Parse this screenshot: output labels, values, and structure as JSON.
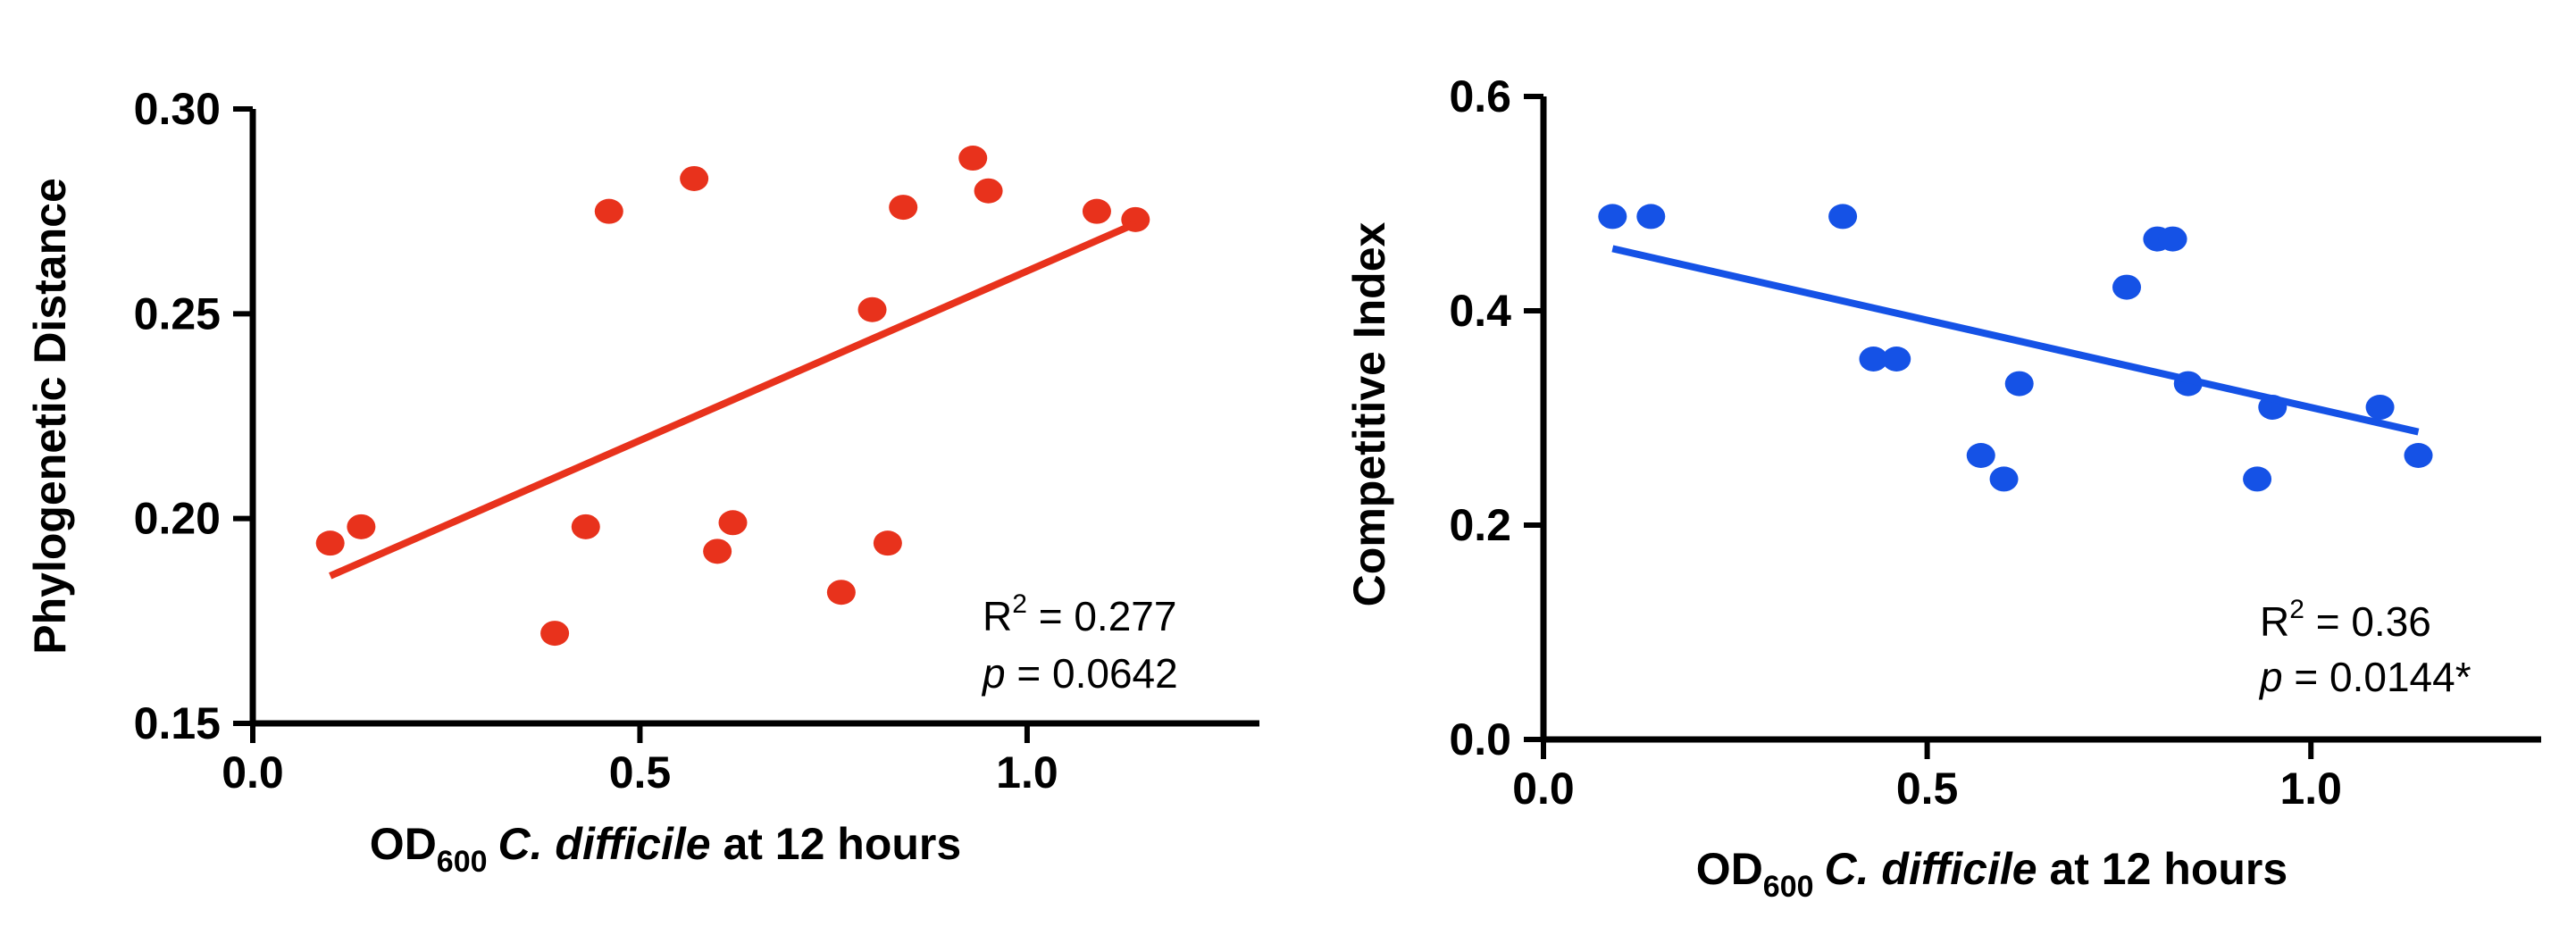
{
  "chart_data": [
    {
      "type": "scatter",
      "title": "",
      "xlabel": {
        "prefix": "OD",
        "subscript": "600",
        "italic": "C. difficile",
        "suffix": " at 12 hours"
      },
      "ylabel": "Phylogenetic Distance",
      "xlim": [
        0,
        1.3
      ],
      "ylim": [
        0.15,
        0.3
      ],
      "xticks": [
        0.0,
        0.5,
        1.0
      ],
      "xtick_labels": [
        "0.0",
        "0.5",
        "1.0"
      ],
      "yticks": [
        0.15,
        0.2,
        0.25,
        0.3
      ],
      "ytick_labels": [
        "0.15",
        "0.20",
        "0.25",
        "0.30"
      ],
      "grid": false,
      "color": "#e8321c",
      "series": [
        {
          "points": [
            [
              0.1,
              0.194
            ],
            [
              0.14,
              0.198
            ],
            [
              0.39,
              0.172
            ],
            [
              0.43,
              0.198
            ],
            [
              0.46,
              0.275
            ],
            [
              0.57,
              0.283
            ],
            [
              0.6,
              0.192
            ],
            [
              0.62,
              0.199
            ],
            [
              0.76,
              0.182
            ],
            [
              0.8,
              0.251
            ],
            [
              0.82,
              0.194
            ],
            [
              0.84,
              0.276
            ],
            [
              0.93,
              0.288
            ],
            [
              0.95,
              0.28
            ],
            [
              1.09,
              0.275
            ],
            [
              1.14,
              0.273
            ]
          ]
        }
      ],
      "fit_line": [
        [
          0.1,
          0.186
        ],
        [
          1.14,
          0.272
        ]
      ],
      "annotation": {
        "r2_label": "R",
        "r2_sup": "2",
        "r2_value": " = 0.277",
        "p_label": "p",
        "p_value": " = 0.0642"
      }
    },
    {
      "type": "scatter",
      "title": "",
      "xlabel": {
        "prefix": "OD",
        "subscript": "600",
        "italic": "C. difficile",
        "suffix": " at 12 hours"
      },
      "ylabel": "Competitive Index",
      "xlim": [
        0,
        1.3
      ],
      "ylim": [
        0.0,
        0.6
      ],
      "xticks": [
        0.0,
        0.5,
        1.0
      ],
      "xtick_labels": [
        "0.0",
        "0.5",
        "1.0"
      ],
      "yticks": [
        0.0,
        0.2,
        0.4,
        0.6
      ],
      "ytick_labels": [
        "0.0",
        "0.2",
        "0.4",
        "0.6"
      ],
      "grid": false,
      "color": "#1552e6",
      "series": [
        {
          "points": [
            [
              0.09,
              0.488
            ],
            [
              0.14,
              0.488
            ],
            [
              0.39,
              0.488
            ],
            [
              0.43,
              0.355
            ],
            [
              0.46,
              0.355
            ],
            [
              0.57,
              0.265
            ],
            [
              0.6,
              0.243
            ],
            [
              0.62,
              0.332
            ],
            [
              0.76,
              0.422
            ],
            [
              0.8,
              0.467
            ],
            [
              0.82,
              0.467
            ],
            [
              0.84,
              0.332
            ],
            [
              0.93,
              0.243
            ],
            [
              0.95,
              0.31
            ],
            [
              1.09,
              0.31
            ],
            [
              1.14,
              0.265
            ]
          ]
        }
      ],
      "fit_line": [
        [
          0.09,
          0.458
        ],
        [
          1.14,
          0.287
        ]
      ],
      "annotation": {
        "r2_label": "R",
        "r2_sup": "2",
        "r2_value": " = 0.36",
        "p_label": "p",
        "p_value": " = 0.0144*"
      }
    }
  ]
}
